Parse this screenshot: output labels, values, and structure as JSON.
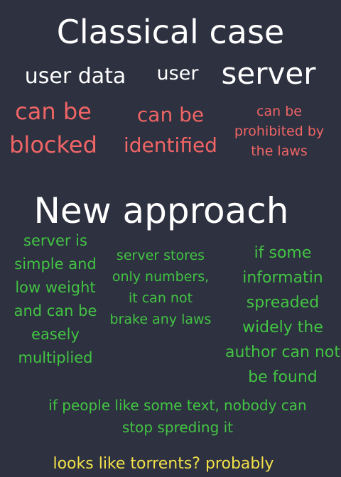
{
  "colors": {
    "background": "#2d3140",
    "heading": "#ffffff",
    "problem": "#f06565",
    "solution": "#43c443",
    "conclusion": "#f2e14a"
  },
  "classical": {
    "title": "Classical case",
    "labels": {
      "user_data": "user data",
      "user": "user",
      "server": "server"
    },
    "problems": {
      "user_data": "can be\nblocked",
      "user": "can be\nidentified",
      "server": "can be\nprohibited by\nthe laws"
    }
  },
  "new_approach": {
    "title": "New approach",
    "points": {
      "server_simple": "server is\nsimple and\nlow weight\nand can be\neasely\nmultiplied",
      "server_numbers": "server stores\nonly numbers,\nit can not\nbrake any laws",
      "author_hidden": "if some\ninformatin\nspreaded\nwidely the\nauthor can not\nbe found"
    },
    "people": "if  people like some text, nobody can\nstop spreding it"
  },
  "conclusion": "looks like torrents? probably"
}
